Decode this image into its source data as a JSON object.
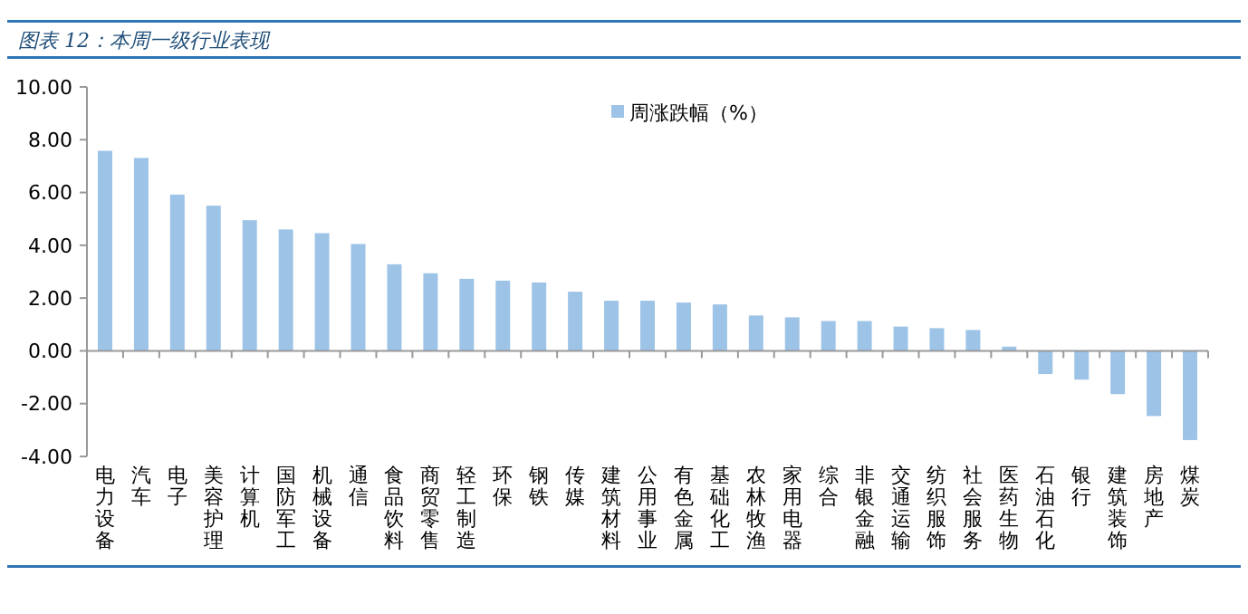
{
  "chart_data": {
    "type": "bar",
    "title": "图表 12：本周一级行业表现",
    "categories": [
      "电力设备",
      "汽车",
      "电子",
      "美容护理",
      "计算机",
      "国防军工",
      "机械设备",
      "通信",
      "食品饮料",
      "商贸零售",
      "轻工制造",
      "环保",
      "钢铁",
      "传媒",
      "建筑材料",
      "公用事业",
      "有色金属",
      "基础化工",
      "农林牧渔",
      "家用电器",
      "综合",
      "非银金融",
      "交通运输",
      "纺织服饰",
      "社会服务",
      "医药生物",
      "石油石化",
      "银行",
      "建筑装饰",
      "房地产",
      "煤炭"
    ],
    "series": [
      {
        "name": "周涨跌幅（%）",
        "color": "#9dc3e6",
        "values": [
          7.58,
          7.31,
          5.92,
          5.5,
          4.95,
          4.6,
          4.46,
          4.05,
          3.28,
          2.94,
          2.73,
          2.66,
          2.59,
          2.24,
          1.9,
          1.9,
          1.83,
          1.76,
          1.34,
          1.27,
          1.13,
          1.13,
          0.92,
          0.86,
          0.79,
          0.16,
          -0.88,
          -1.09,
          -1.64,
          -2.47,
          -3.38
        ]
      }
    ],
    "ylim": [
      -4,
      10
    ],
    "yticks": [
      {
        "value": -4,
        "label": "-4.00"
      },
      {
        "value": -2,
        "label": "-2.00"
      },
      {
        "value": 0,
        "label": "0.00"
      },
      {
        "value": 2,
        "label": "2.00"
      },
      {
        "value": 4,
        "label": "4.00"
      },
      {
        "value": 6,
        "label": "6.00"
      },
      {
        "value": 8,
        "label": "8.00"
      },
      {
        "value": 10,
        "label": "10.00"
      }
    ],
    "legend": "top"
  }
}
